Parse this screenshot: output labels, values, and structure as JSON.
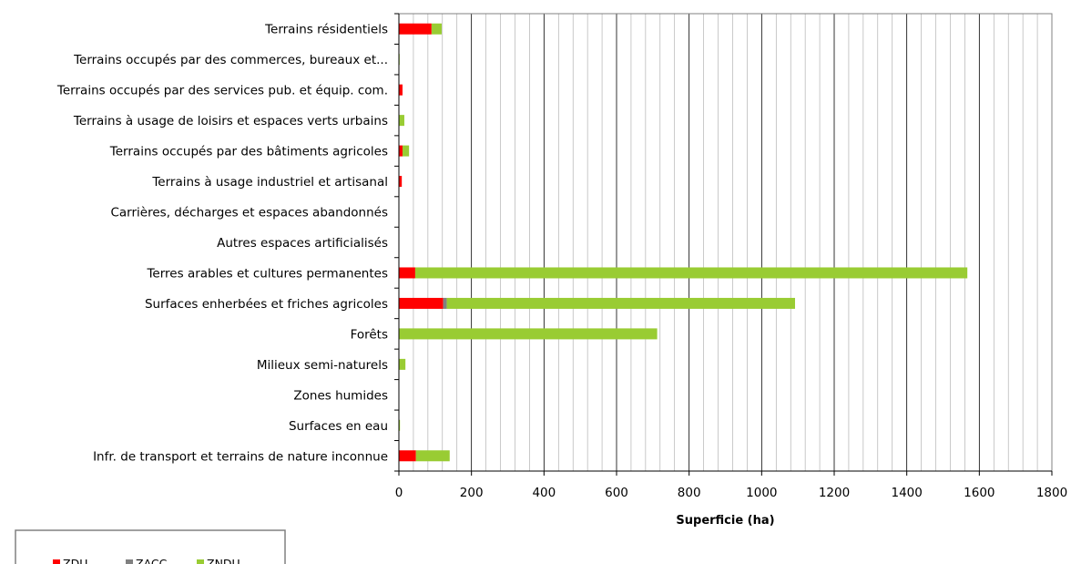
{
  "chart_data": {
    "type": "bar",
    "orientation": "horizontal",
    "stacked": true,
    "categories": [
      "Terrains résidentiels",
      "Terrains occupés par des commerces, bureaux et...",
      "Terrains occupés par des services pub. et équip. com.",
      "Terrains à usage de loisirs et espaces verts urbains",
      "Terrains occupés par des bâtiments agricoles",
      "Terrains à usage industriel et artisanal",
      "Carrières, décharges et espaces abandonnés",
      "Autres espaces artificialisés",
      "Terres arables et cultures permanentes",
      "Surfaces enherbées et friches agricoles",
      "Forêts",
      "Milieux semi-naturels",
      "Zones humides",
      "Surfaces en eau",
      "Infr. de transport et terrains de nature inconnue"
    ],
    "series": [
      {
        "name": "ZDU",
        "color": "#ff0000",
        "values": [
          90,
          0,
          10,
          0,
          10,
          8,
          0,
          0,
          45,
          122,
          0,
          0,
          0,
          0,
          47
        ]
      },
      {
        "name": "ZACC",
        "color": "#808080",
        "values": [
          0,
          0,
          0,
          0,
          0,
          0,
          0,
          0,
          0,
          10,
          0,
          0,
          0,
          0,
          0
        ]
      },
      {
        "name": "ZNDU",
        "color": "#99cc33",
        "values": [
          28,
          2,
          0,
          15,
          18,
          0,
          0,
          0,
          1522,
          960,
          712,
          18,
          0,
          3,
          93
        ]
      }
    ],
    "title": "",
    "xlabel": "Superficie (ha)",
    "ylabel": "",
    "xlim": [
      0,
      1800
    ],
    "major_ticks": [
      0,
      200,
      400,
      600,
      800,
      1000,
      1200,
      1400,
      1600,
      1800
    ],
    "minor_tick_step": 40,
    "grid": true,
    "legend_position": "bottom-left"
  }
}
